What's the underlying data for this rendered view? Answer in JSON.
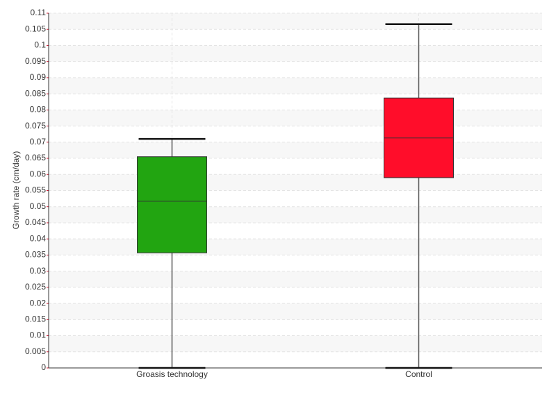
{
  "chart_data": {
    "type": "box",
    "y_label": "Growth rate (cm/day)",
    "categories": [
      "Groasis technology",
      "Control"
    ],
    "boxes": [
      {
        "color": "#22a511",
        "min": 0,
        "q1": 0.0357,
        "median": 0.0517,
        "q3": 0.0655,
        "max": 0.071
      },
      {
        "color": "#ff0d2a",
        "min": 0,
        "q1": 0.059,
        "median": 0.0713,
        "q3": 0.0837,
        "max": 0.1066
      }
    ],
    "ylim": [
      0,
      0.11
    ],
    "yticks": [
      0,
      0.005,
      0.01,
      0.015,
      0.02,
      0.025,
      0.03,
      0.035,
      0.04,
      0.045,
      0.05,
      0.055,
      0.06,
      0.065,
      0.07,
      0.075,
      0.08,
      0.085,
      0.09,
      0.095,
      0.1,
      0.105,
      0.11
    ],
    "grid": true
  }
}
